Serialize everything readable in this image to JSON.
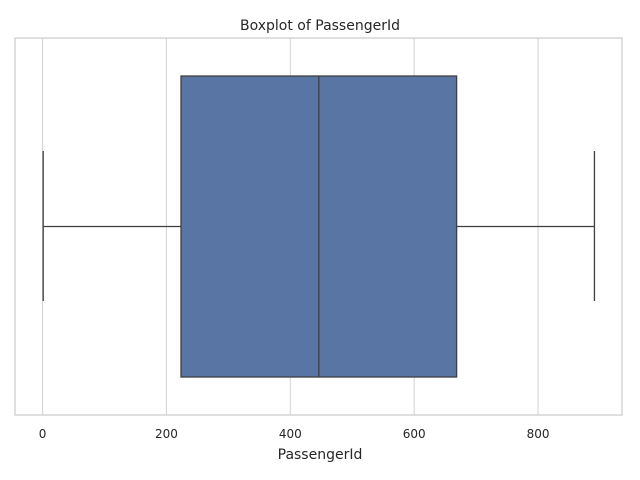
{
  "chart_data": {
    "type": "boxplot",
    "title": "Boxplot of PassengerId",
    "xlabel": "PassengerId",
    "ylabel": "",
    "xlim": [
      -44.5,
      935.5
    ],
    "xticks": [
      0,
      200,
      400,
      600,
      800
    ],
    "grid": true,
    "orientation": "horizontal",
    "box_color": "#5875a4",
    "series": [
      {
        "min": 1,
        "q1": 223.5,
        "median": 446,
        "q3": 668.5,
        "max": 891
      }
    ]
  }
}
